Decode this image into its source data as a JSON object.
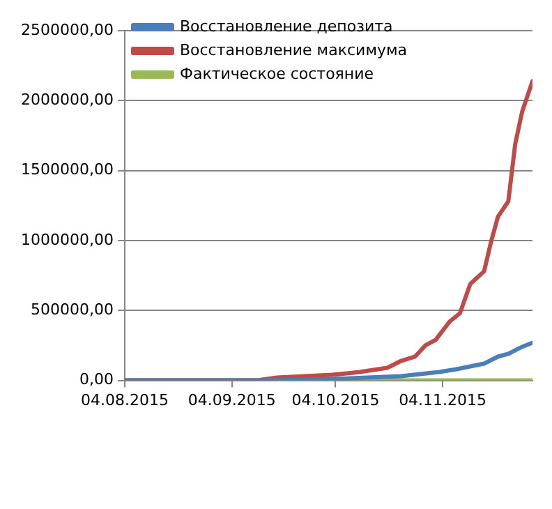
{
  "chart_data": {
    "type": "line",
    "xlim": [
      "2015-08-04",
      "2015-11-30"
    ],
    "xticks": [
      {
        "value": "2015-08-04",
        "label": "04.08.2015"
      },
      {
        "value": "2015-09-04",
        "label": "04.09.2015"
      },
      {
        "value": "2015-10-04",
        "label": "04.10.2015"
      },
      {
        "value": "2015-11-04",
        "label": "04.11.2015"
      }
    ],
    "ylim": [
      0,
      2500000
    ],
    "yticks": [
      {
        "value": 0,
        "label": "0,00"
      },
      {
        "value": 500000,
        "label": "500000,00"
      },
      {
        "value": 1000000,
        "label": "1000000,00"
      },
      {
        "value": 1500000,
        "label": "1500000,00"
      },
      {
        "value": 2000000,
        "label": "2000000,00"
      },
      {
        "value": 2500000,
        "label": "2500000,00"
      }
    ],
    "grid": "y",
    "legend": "top left",
    "marker": "none",
    "series": [
      {
        "name": "Восстановление депозита",
        "color": "#4a7ebb",
        "x": [
          "2015-08-04",
          "2015-09-17",
          "2015-10-03",
          "2015-10-23",
          "2015-11-03",
          "2015-11-08",
          "2015-11-16",
          "2015-11-20",
          "2015-11-23",
          "2015-11-27",
          "2015-11-30"
        ],
        "values": [
          0,
          0,
          10000,
          30000,
          60000,
          80000,
          120000,
          170000,
          190000,
          240000,
          270000
        ]
      },
      {
        "name": "Восстановление максимума",
        "color": "#be4b48",
        "x": [
          "2015-08-04",
          "2015-09-11",
          "2015-09-17",
          "2015-10-03",
          "2015-10-11",
          "2015-10-19",
          "2015-10-23",
          "2015-10-27",
          "2015-10-30",
          "2015-11-02",
          "2015-11-06",
          "2015-11-09",
          "2015-11-12",
          "2015-11-16",
          "2015-11-18",
          "2015-11-20",
          "2015-11-23",
          "2015-11-25",
          "2015-11-27",
          "2015-11-30"
        ],
        "values": [
          0,
          0,
          20000,
          40000,
          60000,
          90000,
          140000,
          170000,
          250000,
          290000,
          420000,
          480000,
          690000,
          780000,
          990000,
          1170000,
          1280000,
          1690000,
          1920000,
          2140000
        ]
      },
      {
        "name": "Фактическое состояние",
        "color": "#98b954",
        "x": [
          "2015-08-04",
          "2015-11-30"
        ],
        "values": [
          0,
          0
        ]
      }
    ]
  }
}
